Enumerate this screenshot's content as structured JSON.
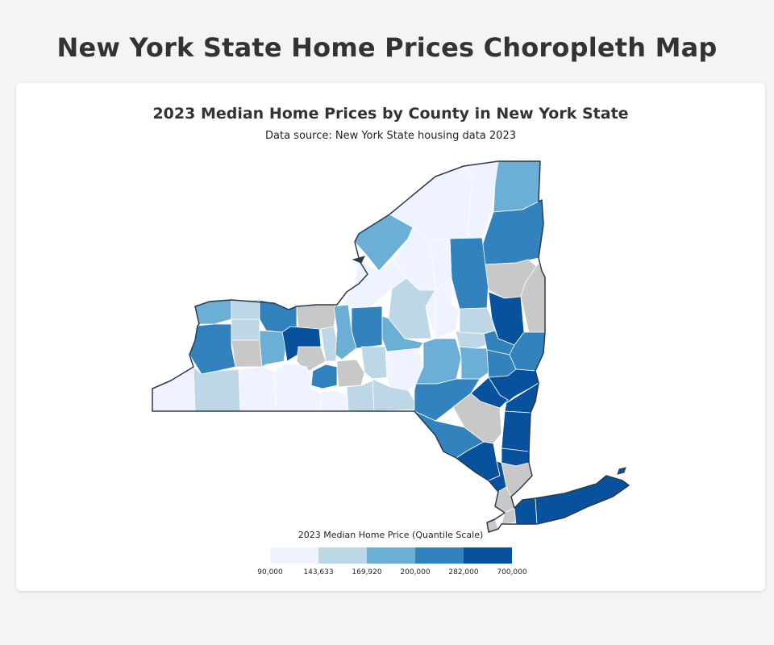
{
  "page": {
    "title": "New York State Home Prices Choropleth Map"
  },
  "map": {
    "title": "2023 Median Home Prices by County in New York State",
    "subtitle": "Data source: New York State housing data 2023",
    "no_data_color": "#c8c8c8",
    "border_color": "#2b3a4a"
  },
  "legend": {
    "title": "2023 Median Home Price (Quantile Scale)",
    "scale": "quantile",
    "colors": [
      "#eff3ff",
      "#bdd7e7",
      "#6baed6",
      "#3182bd",
      "#08519c"
    ],
    "ticks": [
      "90,000",
      "143,633",
      "169,920",
      "200,000",
      "282,000",
      "700,000"
    ]
  }
}
